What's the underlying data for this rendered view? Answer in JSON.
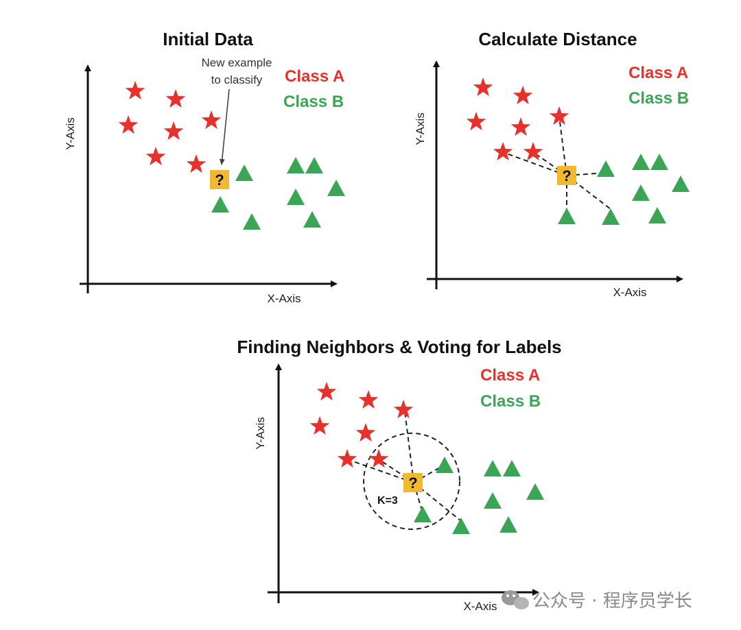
{
  "colors": {
    "class_a": "#e8302c",
    "class_b": "#3aa655",
    "query": "#f2b830",
    "axis": "#111111"
  },
  "watermark": {
    "icon": "wechat-icon",
    "text": "公众号 · 程序员学长"
  },
  "panels": {
    "initial": {
      "title": "Initial Data",
      "x_label": "X-Axis",
      "y_label": "Y-Axis",
      "legend_a": "Class A",
      "legend_b": "Class B",
      "annotation_line1": "New example",
      "annotation_line2": "to classify",
      "query_label": "?"
    },
    "distance": {
      "title": "Calculate Distance",
      "x_label": "X-Axis",
      "y_label": "Y-Axis",
      "legend_a": "Class A",
      "legend_b": "Class B",
      "query_label": "?"
    },
    "neighbors": {
      "title": "Finding Neighbors & Voting for Labels",
      "x_label": "X-Axis",
      "y_label": "Y-Axis",
      "legend_a": "Class A",
      "legend_b": "Class B",
      "query_label": "?",
      "k_label": "K=3",
      "k_value": 3
    }
  }
}
